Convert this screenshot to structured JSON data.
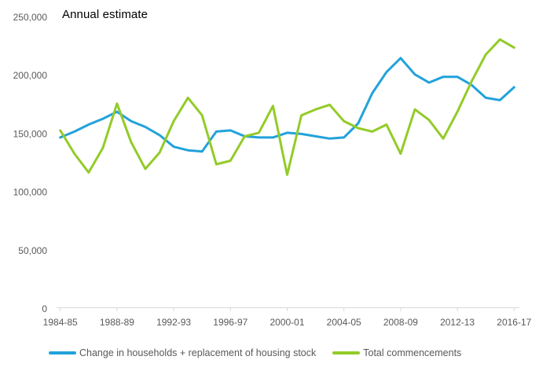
{
  "chart_data": {
    "type": "line",
    "title": "Annual estimate",
    "xlabel": "",
    "ylabel": "",
    "ylim": [
      0,
      250000
    ],
    "grid": "off",
    "legend_position": "bottom",
    "colors": {
      "axis": "#d9d9d9",
      "tick_text": "#595959",
      "title_text": "#000000"
    },
    "x_categories": [
      "1984-85",
      "1985-86",
      "1986-87",
      "1987-88",
      "1988-89",
      "1989-90",
      "1990-91",
      "1991-92",
      "1992-93",
      "1993-94",
      "1994-95",
      "1995-96",
      "1996-97",
      "1997-98",
      "1998-99",
      "1999-00",
      "2000-01",
      "2001-02",
      "2002-03",
      "2003-04",
      "2004-05",
      "2005-06",
      "2006-07",
      "2007-08",
      "2008-09",
      "2009-10",
      "2010-11",
      "2011-12",
      "2012-13",
      "2013-14",
      "2014-15",
      "2015-16",
      "2016-17"
    ],
    "x_tick_labels": [
      "1984-85",
      "1988-89",
      "1992-93",
      "1996-97",
      "2000-01",
      "2004-05",
      "2008-09",
      "2012-13",
      "2016-17"
    ],
    "y_tick_labels": [
      "250,000",
      "200,000",
      "150,000",
      "100,000",
      "50,000",
      "0"
    ],
    "y_tick_values": [
      250000,
      200000,
      150000,
      100000,
      50000,
      0
    ],
    "series": [
      {
        "name": "Change in households + replacement of housing stock",
        "color": "#22a2db",
        "values": [
          147000,
          152000,
          158000,
          163000,
          169000,
          161000,
          156000,
          149000,
          139000,
          136000,
          135000,
          152000,
          153000,
          148000,
          147000,
          147000,
          151000,
          150000,
          148000,
          146000,
          147000,
          159000,
          185000,
          203000,
          215000,
          201000,
          194000,
          199000,
          199000,
          192000,
          181000,
          179000,
          190000
        ]
      },
      {
        "name": "Total commencements",
        "color": "#93cb28",
        "values": [
          153000,
          133000,
          117000,
          138000,
          176000,
          143000,
          120000,
          134000,
          161000,
          181000,
          166000,
          124000,
          127000,
          148000,
          151000,
          174000,
          115000,
          166000,
          171000,
          175000,
          161000,
          155000,
          152000,
          158000,
          133000,
          171000,
          162000,
          146000,
          169000,
          195000,
          218000,
          231000,
          224000
        ]
      }
    ]
  }
}
